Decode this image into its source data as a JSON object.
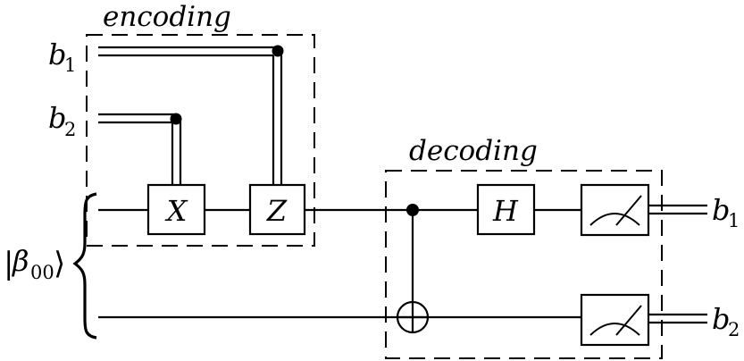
{
  "diagram": {
    "encoding_label": "encoding",
    "decoding_label": "decoding",
    "inputs": {
      "b1": {
        "main": "b",
        "sub": "1"
      },
      "b2": {
        "main": "b",
        "sub": "2"
      }
    },
    "bell_state": {
      "open": "|",
      "main": "β",
      "sub": "00",
      "close": "⟩"
    },
    "gates": {
      "x": "X",
      "z": "Z",
      "h": "H"
    },
    "outputs": {
      "b1": {
        "main": "b",
        "sub": "1"
      },
      "b2": {
        "main": "b",
        "sub": "2"
      }
    }
  }
}
